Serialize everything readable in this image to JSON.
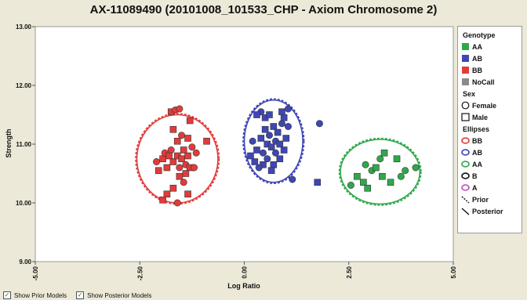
{
  "chart_data": {
    "type": "scatter",
    "title": "AX-11089490 (20101008_101533_CHP - Axiom Chromosome 2)",
    "xlabel": "Log Ratio",
    "ylabel": "Strength",
    "xlim": [
      -5,
      5
    ],
    "ylim": [
      9,
      13
    ],
    "x_ticks": [
      "-5.00",
      "-2.50",
      "0.00",
      "2.50",
      "5.00"
    ],
    "y_ticks": [
      "9.00",
      "10.00",
      "11.00",
      "12.00",
      "13.00"
    ],
    "grid": false,
    "legend_position": "right",
    "series": [
      {
        "name": "BB",
        "color": "#e23b3b",
        "points": [
          {
            "x": -1.95,
            "y": 10.75,
            "m": "s"
          },
          {
            "x": -2.1,
            "y": 10.7,
            "m": "c"
          },
          {
            "x": -1.85,
            "y": 10.6,
            "m": "s"
          },
          {
            "x": -1.75,
            "y": 10.9,
            "m": "c"
          },
          {
            "x": -1.7,
            "y": 10.7,
            "m": "s"
          },
          {
            "x": -1.6,
            "y": 10.8,
            "m": "s"
          },
          {
            "x": -1.55,
            "y": 10.6,
            "m": "c"
          },
          {
            "x": -1.5,
            "y": 10.75,
            "m": "s"
          },
          {
            "x": -1.45,
            "y": 10.9,
            "m": "s"
          },
          {
            "x": -1.4,
            "y": 10.65,
            "m": "c"
          },
          {
            "x": -1.35,
            "y": 10.8,
            "m": "s"
          },
          {
            "x": -1.3,
            "y": 10.6,
            "m": "s"
          },
          {
            "x": -1.25,
            "y": 10.95,
            "m": "c"
          },
          {
            "x": -1.6,
            "y": 11.05,
            "m": "s"
          },
          {
            "x": -1.5,
            "y": 11.15,
            "m": "c"
          },
          {
            "x": -1.7,
            "y": 11.25,
            "m": "s"
          },
          {
            "x": -1.35,
            "y": 11.1,
            "m": "s"
          },
          {
            "x": -1.75,
            "y": 11.55,
            "m": "s"
          },
          {
            "x": -1.65,
            "y": 11.58,
            "m": "c"
          },
          {
            "x": -1.55,
            "y": 11.6,
            "m": "c"
          },
          {
            "x": -1.3,
            "y": 11.4,
            "m": "s"
          },
          {
            "x": -0.9,
            "y": 11.05,
            "m": "s"
          },
          {
            "x": -1.2,
            "y": 10.6,
            "m": "c"
          },
          {
            "x": -1.55,
            "y": 10.45,
            "m": "s"
          },
          {
            "x": -1.45,
            "y": 10.35,
            "m": "c"
          },
          {
            "x": -1.7,
            "y": 10.25,
            "m": "s"
          },
          {
            "x": -1.85,
            "y": 10.15,
            "m": "s"
          },
          {
            "x": -1.95,
            "y": 10.05,
            "m": "s"
          },
          {
            "x": -1.6,
            "y": 10.0,
            "m": "c"
          },
          {
            "x": -1.35,
            "y": 10.15,
            "m": "s"
          },
          {
            "x": -1.9,
            "y": 10.85,
            "m": "c"
          },
          {
            "x": -1.8,
            "y": 10.8,
            "m": "s"
          },
          {
            "x": -1.4,
            "y": 10.5,
            "m": "s"
          },
          {
            "x": -2.05,
            "y": 10.55,
            "m": "s"
          },
          {
            "x": -1.15,
            "y": 10.85,
            "m": "c"
          }
        ],
        "ellipse": {
          "cx": -1.6,
          "cy": 10.75,
          "rx": 0.97,
          "ry": 0.75
        }
      },
      {
        "name": "AB",
        "color": "#3f46b5",
        "points": [
          {
            "x": 0.2,
            "y": 11.05,
            "m": "c"
          },
          {
            "x": 0.3,
            "y": 10.9,
            "m": "s"
          },
          {
            "x": 0.4,
            "y": 11.1,
            "m": "s"
          },
          {
            "x": 0.45,
            "y": 10.85,
            "m": "c"
          },
          {
            "x": 0.5,
            "y": 11.25,
            "m": "s"
          },
          {
            "x": 0.55,
            "y": 11.0,
            "m": "s"
          },
          {
            "x": 0.6,
            "y": 11.15,
            "m": "c"
          },
          {
            "x": 0.65,
            "y": 10.95,
            "m": "s"
          },
          {
            "x": 0.7,
            "y": 11.3,
            "m": "s"
          },
          {
            "x": 0.75,
            "y": 11.05,
            "m": "c"
          },
          {
            "x": 0.8,
            "y": 11.2,
            "m": "s"
          },
          {
            "x": 0.85,
            "y": 11.0,
            "m": "s"
          },
          {
            "x": 0.9,
            "y": 11.35,
            "m": "c"
          },
          {
            "x": 0.95,
            "y": 11.45,
            "m": "s"
          },
          {
            "x": 1.0,
            "y": 11.1,
            "m": "s"
          },
          {
            "x": 1.05,
            "y": 11.3,
            "m": "c"
          },
          {
            "x": 0.5,
            "y": 11.45,
            "m": "s"
          },
          {
            "x": 0.4,
            "y": 11.55,
            "m": "c"
          },
          {
            "x": 0.3,
            "y": 11.5,
            "m": "s"
          },
          {
            "x": 0.6,
            "y": 11.5,
            "m": "s"
          },
          {
            "x": 0.9,
            "y": 11.55,
            "m": "s"
          },
          {
            "x": 1.05,
            "y": 11.6,
            "m": "c"
          },
          {
            "x": 0.25,
            "y": 10.7,
            "m": "s"
          },
          {
            "x": 0.45,
            "y": 10.65,
            "m": "s"
          },
          {
            "x": 0.55,
            "y": 10.75,
            "m": "c"
          },
          {
            "x": 0.7,
            "y": 10.65,
            "m": "s"
          },
          {
            "x": 0.85,
            "y": 10.75,
            "m": "s"
          },
          {
            "x": 0.65,
            "y": 10.55,
            "m": "s"
          },
          {
            "x": 0.35,
            "y": 10.6,
            "m": "c"
          },
          {
            "x": 1.15,
            "y": 10.4,
            "m": "c"
          },
          {
            "x": 1.75,
            "y": 10.35,
            "m": "s"
          },
          {
            "x": 1.8,
            "y": 11.35,
            "m": "c"
          },
          {
            "x": 0.15,
            "y": 10.8,
            "m": "s"
          },
          {
            "x": 0.95,
            "y": 10.9,
            "m": "s"
          },
          {
            "x": 0.75,
            "y": 10.85,
            "m": "c"
          }
        ],
        "ellipse": {
          "cx": 0.7,
          "cy": 11.05,
          "rx": 0.7,
          "ry": 0.7
        }
      },
      {
        "name": "AA",
        "color": "#2fa84a",
        "points": [
          {
            "x": 2.55,
            "y": 10.3,
            "m": "c"
          },
          {
            "x": 2.7,
            "y": 10.45,
            "m": "s"
          },
          {
            "x": 2.85,
            "y": 10.35,
            "m": "s"
          },
          {
            "x": 2.95,
            "y": 10.25,
            "m": "s"
          },
          {
            "x": 3.05,
            "y": 10.55,
            "m": "c"
          },
          {
            "x": 3.15,
            "y": 10.6,
            "m": "s"
          },
          {
            "x": 3.25,
            "y": 10.75,
            "m": "c"
          },
          {
            "x": 3.3,
            "y": 10.45,
            "m": "s"
          },
          {
            "x": 3.35,
            "y": 10.85,
            "m": "s"
          },
          {
            "x": 3.5,
            "y": 10.35,
            "m": "s"
          },
          {
            "x": 3.65,
            "y": 10.75,
            "m": "s"
          },
          {
            "x": 3.75,
            "y": 10.45,
            "m": "c"
          },
          {
            "x": 3.85,
            "y": 10.55,
            "m": "c"
          },
          {
            "x": 4.1,
            "y": 10.6,
            "m": "c"
          },
          {
            "x": 2.9,
            "y": 10.65,
            "m": "c"
          }
        ],
        "ellipse": {
          "cx": 3.25,
          "cy": 10.53,
          "rx": 0.95,
          "ry": 0.55
        }
      }
    ]
  },
  "legend": {
    "genotype_title": "Genotype",
    "genotype": [
      {
        "label": "AA",
        "color": "#2fa84a"
      },
      {
        "label": "AB",
        "color": "#3f46b5"
      },
      {
        "label": "BB",
        "color": "#e23b3b"
      },
      {
        "label": "NoCall",
        "color": "#8a8a8a"
      }
    ],
    "sex_title": "Sex",
    "sex": [
      {
        "label": "Female",
        "icon": "circle-icon"
      },
      {
        "label": "Male",
        "icon": "square-icon"
      }
    ],
    "ellipses_title": "Ellipses",
    "ellipses": [
      {
        "label": "BB",
        "color": "#e23b3b"
      },
      {
        "label": "AB",
        "color": "#3f46b5"
      },
      {
        "label": "AA",
        "color": "#2fa84a"
      },
      {
        "label": "B",
        "color": "#111111"
      },
      {
        "label": "A",
        "color": "#c050c0"
      }
    ],
    "lines": [
      {
        "label": "Prior",
        "style": "dashed"
      },
      {
        "label": "Posterior",
        "style": "solid"
      }
    ]
  },
  "footer": {
    "prior_models_label": "Show Prior Models",
    "posterior_models_label": "Show Posterior Models",
    "prior_checked": true,
    "posterior_checked": true
  }
}
